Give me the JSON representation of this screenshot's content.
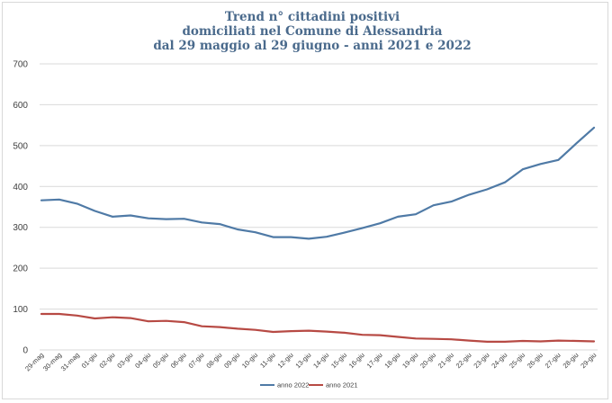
{
  "chart_data": {
    "type": "line",
    "title_lines": [
      "Trend n° cittadini positivi",
      "domiciliati nel Comune di Alessandria",
      "dal 29 maggio al 29 giugno - anni 2021 e 2022"
    ],
    "xlabel": "",
    "ylabel": "",
    "ylim": [
      0,
      700
    ],
    "yticks": [
      0,
      100,
      200,
      300,
      400,
      500,
      600,
      700
    ],
    "grid": true,
    "legend_position": "bottom",
    "categories": [
      "29-mag",
      "30-mag",
      "31-mag",
      "01-giu",
      "02-giu",
      "03-giu",
      "04-giu",
      "05-giu",
      "06-giu",
      "07-giu",
      "08-giu",
      "09-giu",
      "10-giu",
      "11-giu",
      "12-giu",
      "13-giu",
      "14-giu",
      "15-giu",
      "16-giu",
      "17-giu",
      "18-giu",
      "19-giu",
      "20-giu",
      "21-giu",
      "22-giu",
      "23-giu",
      "24-giu",
      "25-giu",
      "26-giu",
      "27-giu",
      "28-giu",
      "29-giu"
    ],
    "series": [
      {
        "name": "anno 2022",
        "color": "#4f7aa6",
        "values": [
          366,
          368,
          358,
          340,
          326,
          329,
          322,
          320,
          321,
          312,
          308,
          295,
          288,
          276,
          276,
          272,
          277,
          287,
          298,
          310,
          326,
          332,
          354,
          363,
          380,
          393,
          410,
          442,
          455,
          465,
          505,
          544
        ]
      },
      {
        "name": "anno 2021",
        "color": "#b74a44",
        "values": [
          88,
          88,
          84,
          77,
          80,
          78,
          70,
          71,
          68,
          58,
          56,
          52,
          49,
          44,
          46,
          47,
          45,
          42,
          37,
          36,
          32,
          28,
          27,
          26,
          23,
          20,
          20,
          22,
          21,
          23,
          22,
          21
        ]
      }
    ]
  }
}
